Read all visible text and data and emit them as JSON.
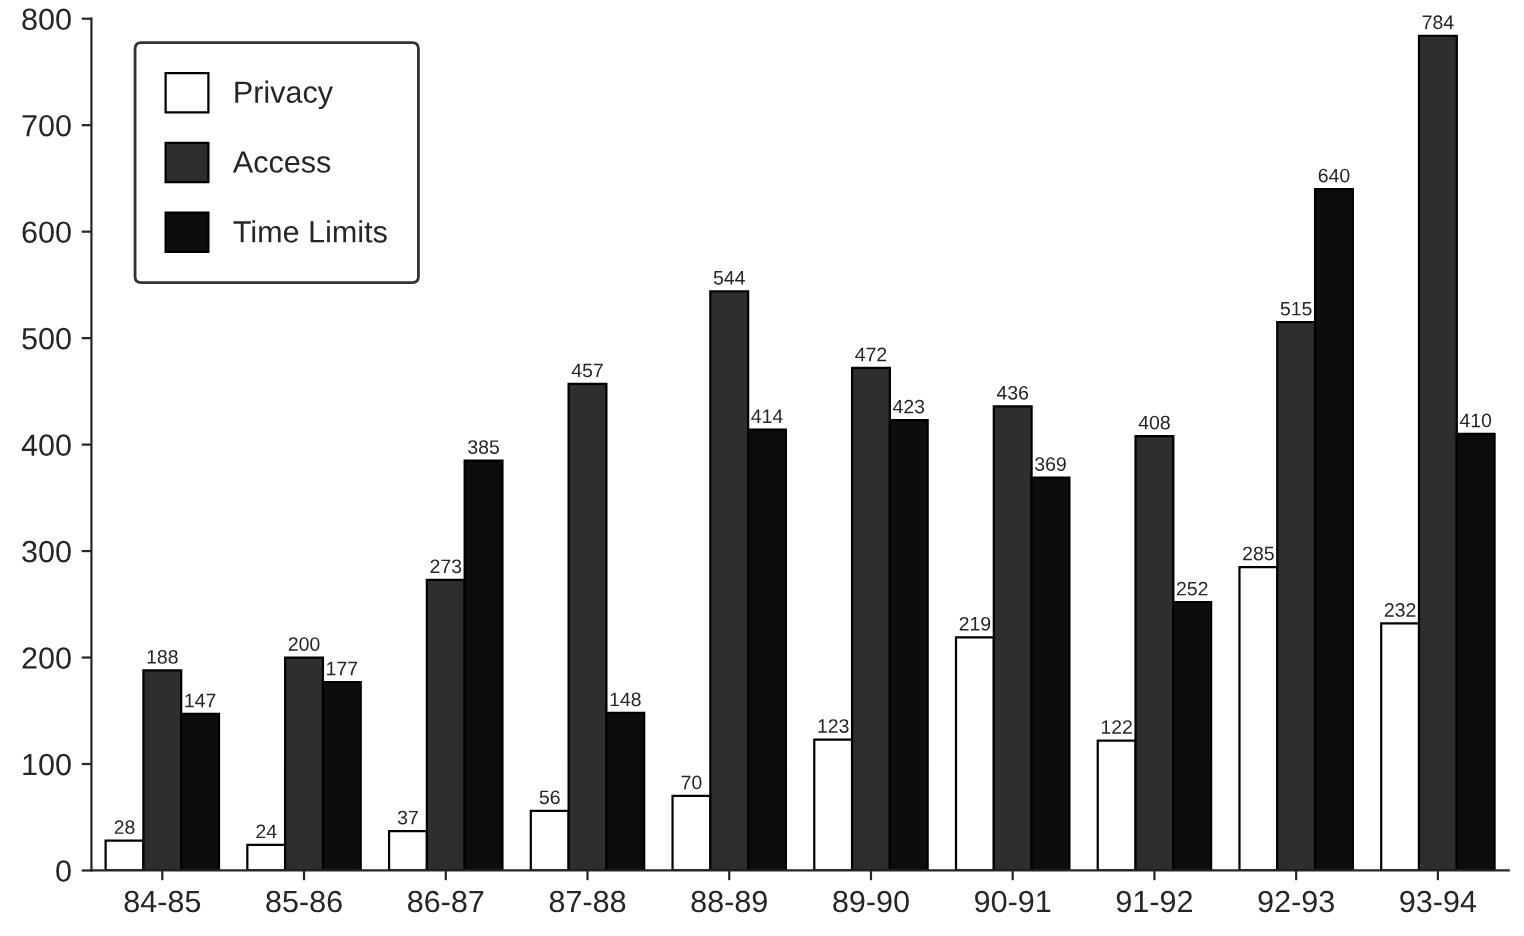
{
  "chart_data": {
    "type": "bar",
    "categories": [
      "84-85",
      "85-86",
      "86-87",
      "87-88",
      "88-89",
      "89-90",
      "90-91",
      "91-92",
      "92-93",
      "93-94"
    ],
    "series": [
      {
        "name": "Privacy",
        "color": "#ffffff",
        "values": [
          28,
          24,
          37,
          56,
          70,
          123,
          219,
          122,
          285,
          232
        ]
      },
      {
        "name": "Access",
        "color": "#2e2e2e",
        "values": [
          188,
          200,
          273,
          457,
          544,
          472,
          436,
          408,
          515,
          784
        ]
      },
      {
        "name": "Time Limits",
        "color": "#0d0d0d",
        "values": [
          147,
          177,
          385,
          148,
          414,
          423,
          369,
          252,
          640,
          410
        ]
      }
    ],
    "ylim": [
      0,
      800
    ],
    "yticks": [
      0,
      100,
      200,
      300,
      400,
      500,
      600,
      700,
      800
    ],
    "data_labels": true,
    "legend": "top left",
    "grid": false
  }
}
